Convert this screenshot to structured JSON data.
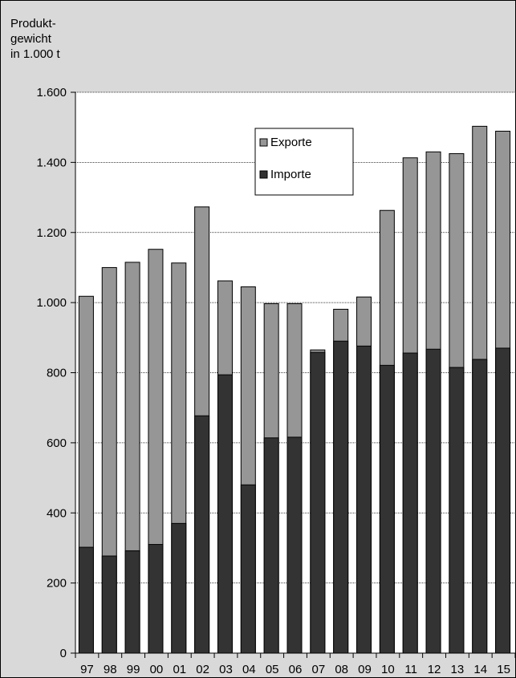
{
  "chart_data": {
    "type": "bar",
    "ylabel_lines": [
      "Produkt-",
      "gewicht",
      "in 1.000 t"
    ],
    "categories": [
      "97",
      "98",
      "99",
      "00",
      "01",
      "02",
      "03",
      "04",
      "05",
      "06",
      "07",
      "08",
      "09",
      "10",
      "11",
      "12",
      "13",
      "14",
      "15"
    ],
    "series": [
      {
        "name": "Exporte",
        "color": "#969696",
        "values": [
          1018,
          1100,
          1115,
          1152,
          1113,
          1273,
          1062,
          1045,
          997,
          997,
          865,
          981,
          1016,
          1263,
          1413,
          1430,
          1425,
          1503,
          1489
        ]
      },
      {
        "name": "Importe",
        "color": "#333333",
        "values": [
          302,
          277,
          292,
          310,
          370,
          677,
          794,
          480,
          614,
          616,
          858,
          890,
          876,
          821,
          856,
          867,
          815,
          838,
          870
        ]
      }
    ],
    "ylim": [
      0,
      1600
    ],
    "yticks": [
      0,
      200,
      400,
      600,
      800,
      1000,
      1200,
      1400,
      1600
    ],
    "ytick_labels": [
      "0",
      "200",
      "400",
      "600",
      "800",
      "1.000",
      "1.200",
      "1.400",
      "1.600"
    ],
    "grid": true,
    "legend_position": "top-center",
    "plot_background": "#ffffff",
    "page_background": "#d9d9d9"
  }
}
